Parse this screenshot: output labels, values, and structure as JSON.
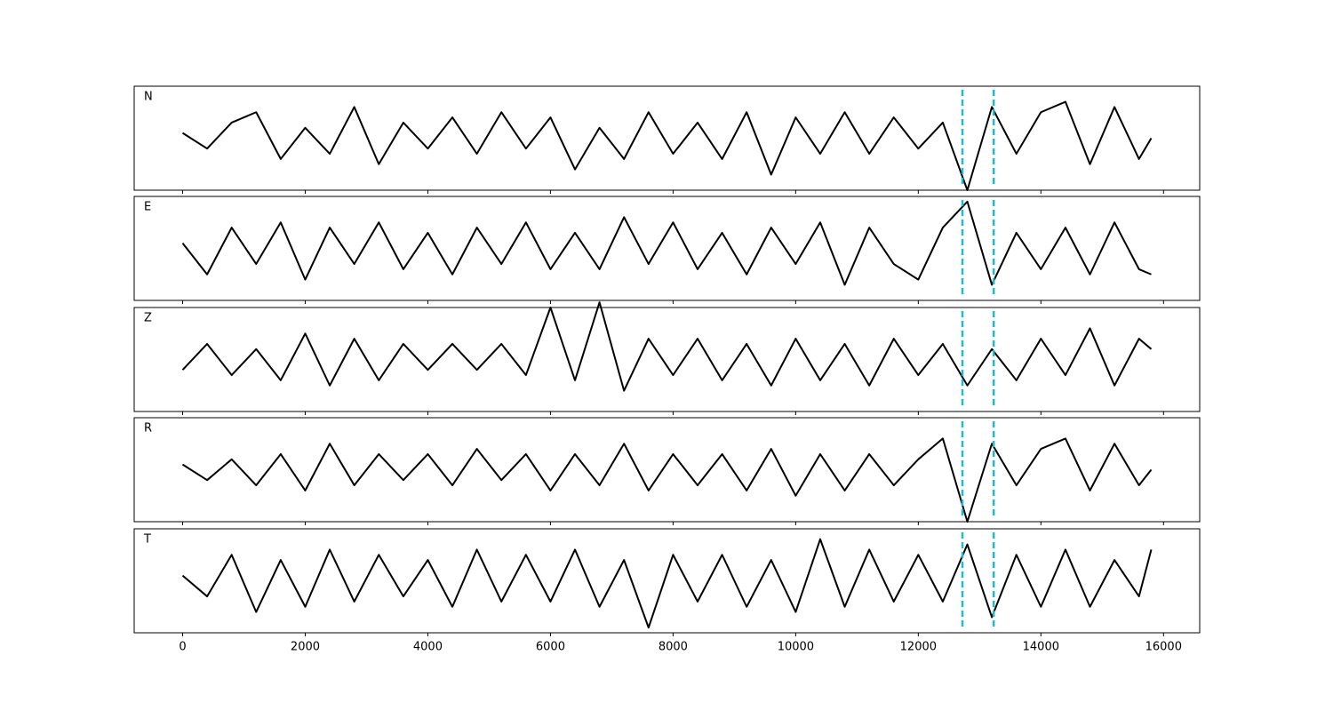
{
  "chart_data": {
    "type": "line",
    "line_color": "#000000",
    "vline_color": "#17becf",
    "xlim": [
      -790,
      16590
    ],
    "ylim": [
      -1,
      1
    ],
    "xticks": [
      0,
      2000,
      4000,
      6000,
      8000,
      10000,
      12000,
      14000,
      16000
    ],
    "vlines": [
      12720,
      13230
    ],
    "x": [
      0,
      400,
      800,
      1200,
      1600,
      2000,
      2400,
      2800,
      3200,
      3600,
      4000,
      4400,
      4800,
      5200,
      5600,
      6000,
      6400,
      6800,
      7200,
      7600,
      8000,
      8400,
      8800,
      9200,
      9600,
      10000,
      10400,
      10800,
      11200,
      11600,
      12000,
      12400,
      12800,
      13200,
      13600,
      14000,
      14400,
      14800,
      15200,
      15600,
      15800
    ],
    "series": [
      {
        "name": "N",
        "values": [
          0.1,
          -0.2,
          0.3,
          0.5,
          -0.4,
          0.2,
          -0.3,
          0.6,
          -0.5,
          0.3,
          -0.2,
          0.4,
          -0.3,
          0.5,
          -0.2,
          0.4,
          -0.6,
          0.2,
          -0.4,
          0.5,
          -0.3,
          0.3,
          -0.4,
          0.5,
          -0.7,
          0.4,
          -0.3,
          0.5,
          -0.3,
          0.4,
          -0.2,
          0.3,
          -1.0,
          0.6,
          -0.3,
          0.5,
          0.7,
          -0.5,
          0.6,
          -0.4,
          0.0
        ]
      },
      {
        "name": "E",
        "values": [
          0.1,
          -0.5,
          0.4,
          -0.3,
          0.5,
          -0.6,
          0.4,
          -0.3,
          0.5,
          -0.4,
          0.3,
          -0.5,
          0.4,
          -0.3,
          0.5,
          -0.4,
          0.3,
          -0.4,
          0.6,
          -0.3,
          0.5,
          -0.4,
          0.3,
          -0.5,
          0.4,
          -0.3,
          0.5,
          -0.7,
          0.4,
          -0.3,
          -0.6,
          0.4,
          0.9,
          -0.7,
          0.3,
          -0.4,
          0.4,
          -0.5,
          0.5,
          -0.4,
          -0.5
        ]
      },
      {
        "name": "Z",
        "values": [
          -0.2,
          0.3,
          -0.3,
          0.2,
          -0.4,
          0.5,
          -0.5,
          0.4,
          -0.4,
          0.3,
          -0.2,
          0.3,
          -0.2,
          0.3,
          -0.3,
          1.0,
          -0.4,
          1.1,
          -0.6,
          0.4,
          -0.3,
          0.4,
          -0.4,
          0.3,
          -0.5,
          0.4,
          -0.4,
          0.3,
          -0.5,
          0.4,
          -0.3,
          0.3,
          -0.5,
          0.2,
          -0.4,
          0.4,
          -0.3,
          0.6,
          -0.5,
          0.4,
          0.2
        ]
      },
      {
        "name": "R",
        "values": [
          0.1,
          -0.2,
          0.2,
          -0.3,
          0.3,
          -0.4,
          0.5,
          -0.3,
          0.3,
          -0.2,
          0.3,
          -0.3,
          0.4,
          -0.2,
          0.3,
          -0.4,
          0.3,
          -0.3,
          0.5,
          -0.4,
          0.3,
          -0.3,
          0.3,
          -0.4,
          0.4,
          -0.5,
          0.3,
          -0.4,
          0.3,
          -0.3,
          0.2,
          0.6,
          -1.0,
          0.5,
          -0.3,
          0.4,
          0.6,
          -0.4,
          0.5,
          -0.3,
          0.0
        ]
      },
      {
        "name": "T",
        "values": [
          0.1,
          -0.3,
          0.5,
          -0.6,
          0.4,
          -0.5,
          0.6,
          -0.4,
          0.5,
          -0.3,
          0.4,
          -0.5,
          0.6,
          -0.4,
          0.5,
          -0.4,
          0.6,
          -0.5,
          0.4,
          -0.9,
          0.5,
          -0.4,
          0.5,
          -0.5,
          0.4,
          -0.6,
          0.8,
          -0.5,
          0.6,
          -0.4,
          0.5,
          -0.4,
          0.7,
          -0.7,
          0.5,
          -0.5,
          0.6,
          -0.5,
          0.4,
          -0.3,
          0.6
        ]
      }
    ]
  }
}
